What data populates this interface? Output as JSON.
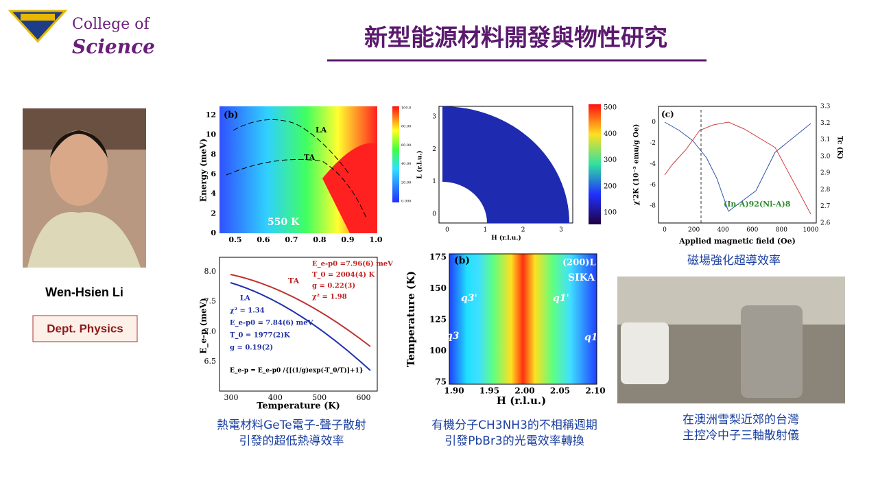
{
  "header": {
    "logo": [
      "College of",
      "Science"
    ],
    "title": "新型能源材料開發與物性研究"
  },
  "profile": {
    "name": "Wen-Hsien Li",
    "dept": "Dept. Physics"
  },
  "fig1": {
    "panel": "(b)",
    "ylabel": "Energy (meV)",
    "yticks": [
      "0",
      "2",
      "4",
      "6",
      "8",
      "10",
      "12"
    ],
    "xticks": [
      "0.5",
      "0.6",
      "0.7",
      "0.8",
      "0.9",
      "1.0"
    ],
    "labels": [
      "LA",
      "TA",
      "550 K"
    ],
    "cbar": [
      "100.0",
      "80.00",
      "60.00",
      "40.00",
      "20.00",
      "0.000"
    ]
  },
  "fig2": {
    "ylabel": "E_e-p (meV)",
    "xlabel": "Temperature (K)",
    "xticks": [
      "300",
      "400",
      "500",
      "600"
    ],
    "yticks": [
      "6.5",
      "7.0",
      "7.5",
      "8.0"
    ],
    "red": [
      "E_e-p0 =7.96(6) meV",
      "T_0 = 2004(4) K",
      "g = 0.22(3)",
      "χ² = 1.98"
    ],
    "ta": "TA",
    "blue": [
      "LA",
      "χ² = 1.34",
      "E_e-p0 = 7.84(6) meV",
      "T_0 = 1977(2)K",
      "g = 0.19(2)"
    ],
    "formula": "E_e-p = E_e-p0 /{[(1/g)exp(-T_0/T)]+1}"
  },
  "fig3": {
    "ylabel": "L (r.l.u.)",
    "xlabel": "H (r.l.u.)",
    "yticks": [
      "0",
      "1",
      "2",
      "3"
    ],
    "xticks": [
      "0",
      "1",
      "2",
      "3"
    ],
    "cbar": [
      "500",
      "400",
      "300",
      "200",
      "100"
    ]
  },
  "fig4": {
    "panel": "(b)",
    "tags": [
      "(200)L",
      "SIKA"
    ],
    "ylabel": "Temperature (K)",
    "xlabel": "H (r.l.u.)",
    "yticks": [
      "175",
      "150",
      "125",
      "100",
      "75"
    ],
    "xticks": [
      "1.90",
      "1.95",
      "2.00",
      "2.05",
      "2.10"
    ],
    "q": [
      "q3'",
      "q1'",
      "q3",
      "q1"
    ]
  },
  "fig5": {
    "panel": "(c)",
    "ylabel": "χ'2K (10⁻³ emu/g Oe)",
    "y2label": "Tc (K)",
    "xlabel": "Applied magnetic field (Oe)",
    "yticks": [
      "0",
      "-2",
      "-4",
      "-6",
      "-8"
    ],
    "y2ticks": [
      "3.3",
      "3.2",
      "3.1",
      "3.0",
      "2.9",
      "2.8",
      "2.7",
      "2.6"
    ],
    "xticks": [
      "0",
      "200",
      "400",
      "600",
      "800",
      "1000"
    ],
    "sample": "(In-A)92(Ni-A)8"
  },
  "captions": [
    [
      "熱電材料GeTe電子-聲子散射",
      "引發的超低熱導效率"
    ],
    [
      "有機分子CH3NH3的不相稱週期",
      "引發PbBr3的光電效率轉換"
    ],
    [
      "磁場強化超導效率"
    ],
    [
      "在澳洲雪梨近郊的台灣",
      "主控冷中子三軸散射儀"
    ]
  ]
}
